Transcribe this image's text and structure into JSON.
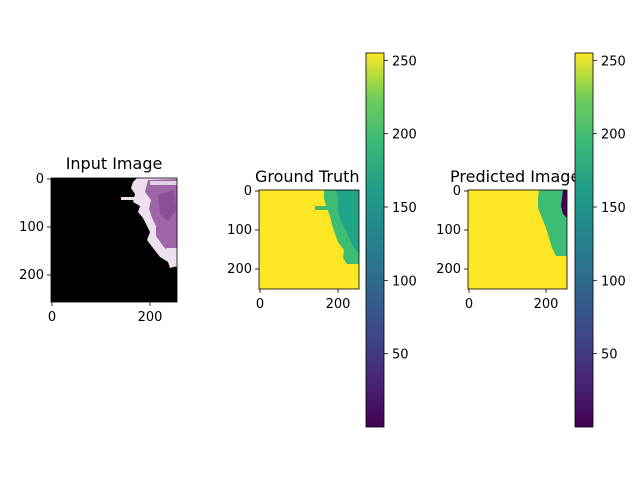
{
  "figure": {
    "panels": [
      {
        "title": "Input Image"
      },
      {
        "title": "Ground Truth"
      },
      {
        "title": "Predicted Image"
      }
    ]
  },
  "chart_data": [
    {
      "type": "heatmap",
      "title": "Input Image",
      "xlim": [
        0,
        256
      ],
      "ylim": [
        256,
        0
      ],
      "xticks": [
        0,
        200
      ],
      "yticks": [
        0,
        100,
        200
      ],
      "grid": false
    },
    {
      "type": "heatmap",
      "title": "Ground Truth",
      "colormap": "viridis",
      "xlim": [
        0,
        256
      ],
      "ylim": [
        256,
        0
      ],
      "xticks": [
        0,
        200
      ],
      "yticks": [
        0,
        100,
        200
      ],
      "colorbar": {
        "range": [
          0,
          255
        ],
        "ticks": [
          50,
          100,
          150,
          200,
          250
        ]
      },
      "grid": false
    },
    {
      "type": "heatmap",
      "title": "Predicted Image",
      "colormap": "viridis",
      "xlim": [
        0,
        256
      ],
      "ylim": [
        256,
        0
      ],
      "xticks": [
        0,
        200
      ],
      "yticks": [
        0,
        100,
        200
      ],
      "colorbar": {
        "range": [
          0,
          255
        ],
        "ticks": [
          50,
          100,
          150,
          200,
          250
        ]
      },
      "grid": false
    }
  ],
  "colors": {
    "yellow": "#fde725",
    "green": "#3dbc74",
    "teal": "#20a386",
    "dark_purple": "#440154",
    "black": "#000000",
    "tissue_purple": "#a066a8",
    "tissue_light": "#f0e2ee"
  }
}
